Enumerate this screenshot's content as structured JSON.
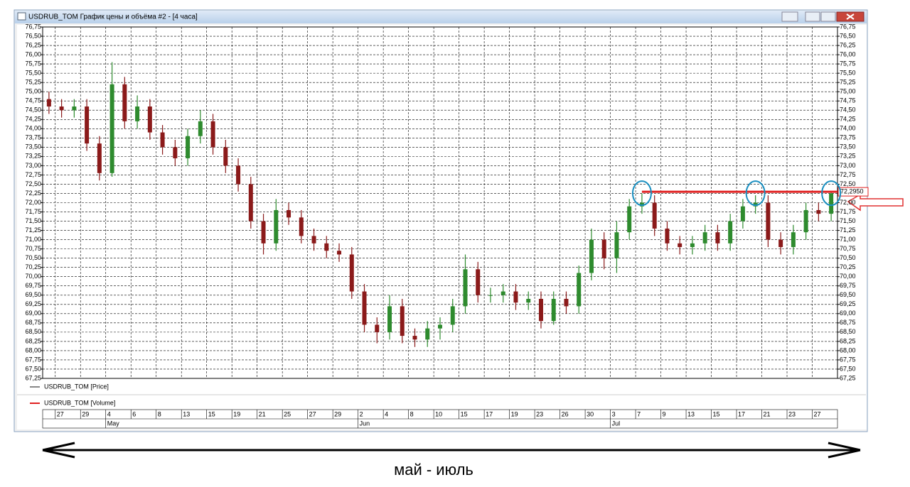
{
  "window": {
    "title": "USDRUB_TOM График цены и объёма #2 - [4 часа]"
  },
  "chart_data": {
    "type": "candlestick",
    "up_color": "#2e8b2e",
    "down_color": "#8b1a1a",
    "grid": true,
    "legend": [
      "USDRUB_TOM [Price]",
      "USDRUB_TOM [Volume]"
    ],
    "ylim": [
      67.25,
      76.75
    ],
    "yticks": [
      {
        "value": 76.75,
        "label": "76,75"
      },
      {
        "value": 76.5,
        "label": "76,50"
      },
      {
        "value": 76.25,
        "label": "76,25"
      },
      {
        "value": 76,
        "label": "76,00"
      },
      {
        "value": 75.75,
        "label": "75,75"
      },
      {
        "value": 75.5,
        "label": "75,50"
      },
      {
        "value": 75.25,
        "label": "75,25"
      },
      {
        "value": 75,
        "label": "75,00"
      },
      {
        "value": 74.75,
        "label": "74,75"
      },
      {
        "value": 74.5,
        "label": "74,50"
      },
      {
        "value": 74.25,
        "label": "74,25"
      },
      {
        "value": 74,
        "label": "74,00"
      },
      {
        "value": 73.75,
        "label": "73,75"
      },
      {
        "value": 73.5,
        "label": "73,50"
      },
      {
        "value": 73.25,
        "label": "73,25"
      },
      {
        "value": 73,
        "label": "73,00"
      },
      {
        "value": 72.75,
        "label": "72,75"
      },
      {
        "value": 72.5,
        "label": "72,50"
      },
      {
        "value": 72.25,
        "label": "72,25"
      },
      {
        "value": 72,
        "label": "72,00"
      },
      {
        "value": 71.75,
        "label": "71,75"
      },
      {
        "value": 71.5,
        "label": "71,50"
      },
      {
        "value": 71.25,
        "label": "71,25"
      },
      {
        "value": 71,
        "label": "71,00"
      },
      {
        "value": 70.75,
        "label": "70,75"
      },
      {
        "value": 70.5,
        "label": "70,50"
      },
      {
        "value": 70.25,
        "label": "70,25"
      },
      {
        "value": 70,
        "label": "70,00"
      },
      {
        "value": 69.75,
        "label": "69,75"
      },
      {
        "value": 69.5,
        "label": "69,50"
      },
      {
        "value": 69.25,
        "label": "69,25"
      },
      {
        "value": 69,
        "label": "69,00"
      },
      {
        "value": 68.75,
        "label": "68,75"
      },
      {
        "value": 68.5,
        "label": "68,50"
      },
      {
        "value": 68.25,
        "label": "68,25"
      },
      {
        "value": 68,
        "label": "68,00"
      },
      {
        "value": 67.75,
        "label": "67,75"
      },
      {
        "value": 67.5,
        "label": "67,50"
      },
      {
        "value": 67.25,
        "label": "67,25"
      }
    ],
    "categories": [
      null,
      "27",
      null,
      "29",
      null,
      "4",
      null,
      "6",
      null,
      "8",
      null,
      "13",
      null,
      "15",
      null,
      "19",
      null,
      "21",
      null,
      "25",
      null,
      "27",
      null,
      "29",
      null,
      "2",
      null,
      "4",
      null,
      "8",
      null,
      "10",
      null,
      "15",
      null,
      "17",
      null,
      "19",
      null,
      "23",
      null,
      "26",
      null,
      "30",
      null,
      "3",
      null,
      "7",
      null,
      "9",
      null,
      "13",
      null,
      "15",
      null,
      "17",
      null,
      "21",
      null,
      "23",
      null,
      "27",
      null
    ],
    "months": [
      null,
      null,
      null,
      null,
      null,
      "May",
      null,
      null,
      null,
      null,
      null,
      null,
      null,
      null,
      null,
      null,
      null,
      null,
      null,
      null,
      null,
      null,
      null,
      null,
      null,
      "Jun",
      null,
      null,
      null,
      null,
      null,
      null,
      null,
      null,
      null,
      null,
      null,
      null,
      null,
      null,
      null,
      null,
      null,
      null,
      null,
      "Jul",
      null,
      null,
      null,
      null,
      null,
      null,
      null,
      null,
      null,
      null,
      null,
      null,
      null,
      null,
      null,
      null,
      null
    ],
    "open": [
      74.8,
      74.6,
      74.5,
      74.6,
      73.6,
      72.8,
      75.2,
      74.2,
      74.6,
      73.9,
      73.5,
      73.2,
      73.8,
      74.2,
      73.5,
      73.0,
      72.5,
      71.5,
      70.9,
      71.8,
      71.6,
      71.1,
      70.9,
      70.7,
      70.6,
      69.6,
      68.7,
      68.5,
      69.2,
      68.4,
      68.3,
      68.6,
      68.7,
      69.2,
      70.2,
      69.5,
      69.5,
      69.6,
      69.3,
      69.4,
      68.8,
      69.4,
      69.2,
      70.1,
      71.0,
      70.5,
      71.2,
      71.9,
      72.0,
      71.3,
      70.9,
      70.8,
      70.9,
      71.2,
      70.9,
      71.5,
      71.9,
      72.0,
      71.0,
      70.8,
      71.2,
      71.8,
      71.7
    ],
    "high": [
      75.0,
      74.8,
      74.8,
      74.8,
      73.8,
      75.8,
      75.4,
      74.9,
      74.8,
      74.1,
      73.7,
      74.0,
      74.5,
      74.4,
      73.7,
      73.2,
      72.7,
      71.7,
      72.1,
      72.0,
      71.8,
      71.3,
      71.1,
      70.9,
      70.8,
      69.8,
      68.9,
      69.5,
      69.4,
      68.6,
      68.8,
      68.9,
      69.4,
      70.6,
      70.4,
      69.7,
      69.8,
      69.8,
      69.6,
      69.6,
      69.6,
      69.6,
      70.3,
      71.3,
      71.2,
      71.5,
      72.1,
      72.25,
      72.2,
      71.5,
      71.1,
      71.1,
      71.4,
      71.4,
      71.7,
      72.1,
      72.2,
      72.2,
      71.2,
      71.4,
      72.0,
      72.0,
      72.3
    ],
    "low": [
      74.4,
      74.3,
      74.3,
      73.4,
      72.6,
      72.7,
      74.0,
      74.0,
      73.7,
      73.3,
      73.0,
      73.0,
      73.6,
      73.3,
      72.8,
      72.3,
      71.3,
      70.6,
      70.7,
      71.4,
      70.9,
      70.7,
      70.5,
      70.4,
      69.4,
      68.5,
      68.2,
      68.3,
      68.2,
      68.1,
      68.1,
      68.3,
      68.5,
      69.0,
      69.3,
      69.3,
      69.3,
      69.1,
      69.1,
      68.6,
      68.7,
      69.0,
      69.0,
      69.9,
      70.2,
      70.1,
      71.0,
      71.7,
      71.1,
      70.7,
      70.6,
      70.6,
      70.7,
      70.7,
      70.7,
      71.3,
      71.7,
      70.8,
      70.6,
      70.6,
      71.0,
      71.5,
      71.5
    ],
    "close": [
      74.6,
      74.5,
      74.6,
      73.6,
      72.8,
      75.2,
      74.2,
      74.6,
      73.9,
      73.5,
      73.2,
      73.8,
      74.2,
      73.5,
      73.0,
      72.5,
      71.5,
      70.9,
      71.8,
      71.6,
      71.1,
      70.9,
      70.7,
      70.6,
      69.6,
      68.7,
      68.5,
      69.2,
      68.4,
      68.3,
      68.6,
      68.7,
      69.2,
      70.2,
      69.5,
      69.5,
      69.6,
      69.3,
      69.4,
      68.8,
      69.4,
      69.2,
      70.1,
      71.0,
      70.5,
      71.2,
      71.9,
      72.0,
      71.3,
      70.9,
      70.8,
      70.9,
      71.2,
      70.9,
      71.5,
      71.9,
      72.0,
      71.0,
      70.8,
      71.2,
      71.8,
      71.7,
      72.25
    ],
    "level": {
      "value": 72.295,
      "label": "72,2950"
    }
  },
  "annotation": "май - июль"
}
